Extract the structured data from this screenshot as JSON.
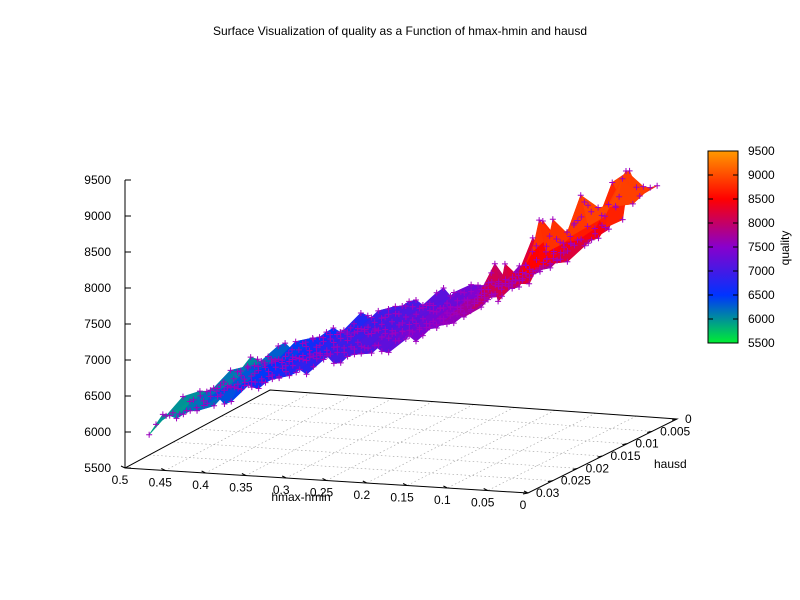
{
  "chart_data": {
    "type": "surface3d",
    "title": "Surface Visualization of quality as a Function of hmax-hmin and hausd",
    "x_axis": {
      "label": "hmax-hmin",
      "range": [
        0,
        0.5
      ],
      "ticks": [
        "0.5",
        "0.45",
        "0.4",
        "0.35",
        "0.3",
        "0.25",
        "0.2",
        "0.15",
        "0.1",
        "0.05",
        "0"
      ]
    },
    "y_axis": {
      "label": "hausd",
      "range": [
        0,
        0.03
      ],
      "ticks": [
        "0",
        "0.005",
        "0.01",
        "0.015",
        "0.02",
        "0.025",
        "0.03"
      ]
    },
    "z_axis": {
      "label": "quality",
      "range": [
        5500,
        9500
      ],
      "ticks": [
        "5500",
        "6000",
        "6500",
        "7000",
        "7500",
        "8000",
        "8500",
        "9000",
        "9500"
      ]
    },
    "colorbar": {
      "label": "quality",
      "range": [
        5500,
        9500
      ],
      "ticks": [
        "5500",
        "6000",
        "6500",
        "7000",
        "7500",
        "8000",
        "8500",
        "9000",
        "9500"
      ],
      "colors": [
        "#00ee33",
        "#0033ff",
        "#8800cc",
        "#ff0000",
        "#ff9900"
      ]
    },
    "marker_color": "#a000c0",
    "grid": true,
    "trend": {
      "x": [
        0.5,
        0.45,
        0.4,
        0.35,
        0.3,
        0.25,
        0.2,
        0.15,
        0.1,
        0.05,
        0.02
      ],
      "z": [
        6050,
        6300,
        6550,
        6800,
        7050,
        7200,
        7400,
        7650,
        8000,
        8300,
        8900
      ]
    }
  }
}
